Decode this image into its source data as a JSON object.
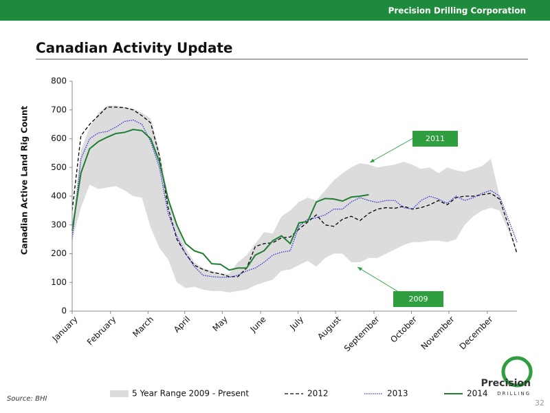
{
  "header": {
    "company": "Precision Drilling Corporation"
  },
  "slide": {
    "title": "Canadian Activity Update",
    "source": "Source: BHI",
    "page": 32
  },
  "logo": {
    "name": "Precision",
    "sub": "DRILLING"
  },
  "chart_data": {
    "type": "line",
    "y_label": "Canadian Active Land Rig Count",
    "x": [
      0,
      1,
      2,
      3,
      4,
      5,
      6,
      7,
      8,
      9,
      10,
      11,
      12,
      13,
      14,
      15,
      16,
      17,
      18,
      19,
      20,
      21,
      22,
      23,
      24,
      25,
      26,
      27,
      28,
      29,
      30,
      31,
      32,
      33,
      34,
      35,
      36,
      37,
      38,
      39,
      40,
      41,
      42,
      43,
      44,
      45,
      46,
      47,
      48,
      49,
      50,
      51
    ],
    "xlim": [
      0,
      51
    ],
    "xticks": [
      {
        "value": 0,
        "label": "January"
      },
      {
        "value": 4.4,
        "label": "February"
      },
      {
        "value": 8.7,
        "label": "March"
      },
      {
        "value": 12.9,
        "label": "April"
      },
      {
        "value": 17.2,
        "label": "May"
      },
      {
        "value": 21.6,
        "label": "June"
      },
      {
        "value": 25.9,
        "label": "July"
      },
      {
        "value": 30.2,
        "label": "August"
      },
      {
        "value": 34.6,
        "label": "September"
      },
      {
        "value": 38.9,
        "label": "October"
      },
      {
        "value": 43.2,
        "label": "November"
      },
      {
        "value": 47.6,
        "label": "December"
      }
    ],
    "ylim": [
      0,
      800
    ],
    "yticks": [
      0,
      100,
      200,
      300,
      400,
      500,
      600,
      700,
      800
    ],
    "grid": false,
    "legend": "bottom",
    "range": {
      "name": "5 Year Range 2009 - Present",
      "color": "#dcdcdc",
      "high": [
        300,
        560,
        640,
        690,
        715,
        715,
        710,
        705,
        690,
        670,
        560,
        400,
        300,
        220,
        170,
        150,
        140,
        130,
        130,
        170,
        195,
        235,
        275,
        270,
        330,
        350,
        380,
        395,
        385,
        420,
        455,
        480,
        500,
        515,
        510,
        500,
        505,
        510,
        520,
        510,
        495,
        500,
        480,
        500,
        490,
        485,
        495,
        505,
        530,
        400,
        300,
        210
      ],
      "low": [
        250,
        360,
        440,
        425,
        430,
        435,
        420,
        400,
        395,
        290,
        220,
        180,
        100,
        80,
        85,
        75,
        70,
        70,
        65,
        70,
        75,
        90,
        100,
        110,
        140,
        145,
        160,
        175,
        155,
        185,
        200,
        200,
        170,
        170,
        185,
        185,
        200,
        215,
        230,
        240,
        240,
        245,
        245,
        240,
        250,
        300,
        330,
        350,
        360,
        350,
        280,
        200
      ]
    },
    "series": [
      {
        "name": "2012",
        "color": "#000000",
        "style": "dashed",
        "values": [
          350,
          610,
          650,
          680,
          710,
          710,
          708,
          700,
          680,
          655,
          540,
          360,
          250,
          200,
          160,
          145,
          135,
          130,
          120,
          120,
          150,
          225,
          235,
          238,
          255,
          258,
          285,
          310,
          335,
          300,
          295,
          320,
          330,
          315,
          340,
          355,
          360,
          358,
          365,
          355,
          360,
          370,
          385,
          370,
          395,
          400,
          400,
          405,
          410,
          390,
          300,
          200
        ]
      },
      {
        "name": "2013",
        "color": "#2b2bd6",
        "style": "dotted",
        "values": [
          250,
          530,
          600,
          620,
          625,
          640,
          660,
          665,
          650,
          590,
          500,
          340,
          260,
          200,
          155,
          125,
          120,
          118,
          118,
          125,
          140,
          150,
          170,
          195,
          205,
          210,
          295,
          320,
          325,
          335,
          355,
          355,
          380,
          395,
          385,
          378,
          385,
          385,
          360,
          355,
          385,
          400,
          390,
          375,
          400,
          385,
          395,
          410,
          420,
          400,
          320,
          240
        ]
      },
      {
        "name": "2014",
        "color": "#1e7d32",
        "style": "solid",
        "values": [
          280,
          480,
          565,
          590,
          605,
          618,
          622,
          632,
          628,
          600,
          520,
          390,
          300,
          235,
          210,
          200,
          165,
          163,
          143,
          150,
          150,
          195,
          210,
          245,
          262,
          235,
          307,
          312,
          380,
          392,
          390,
          383,
          397,
          400,
          405,
          null,
          null,
          null,
          null,
          null,
          null,
          null,
          null,
          null,
          null,
          null,
          null,
          null,
          null,
          null,
          null,
          null
        ]
      }
    ],
    "annotations": [
      {
        "text": "2011",
        "color": "#2e9e3e"
      },
      {
        "text": "2009",
        "color": "#2e9e3e"
      }
    ]
  }
}
